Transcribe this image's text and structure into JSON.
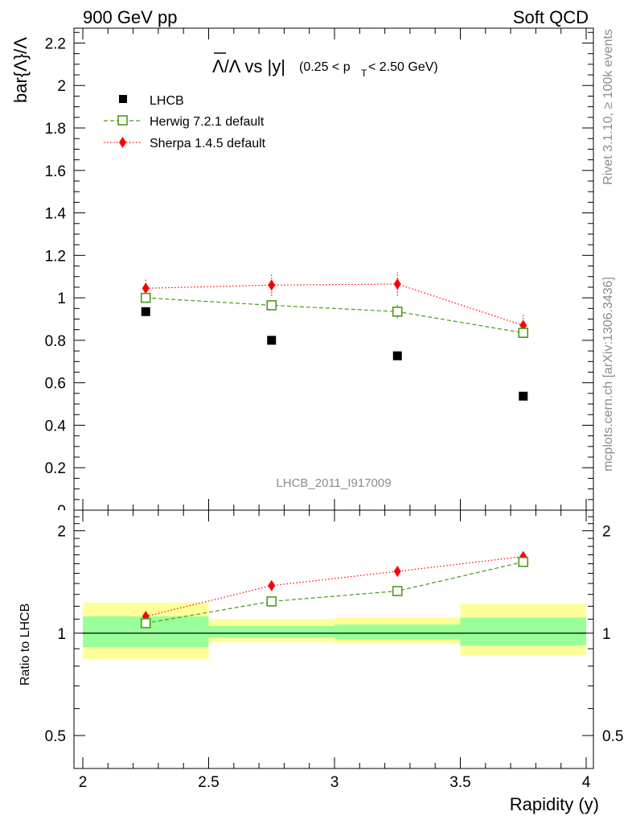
{
  "header": {
    "left": "900 GeV pp",
    "right": "Soft QCD"
  },
  "side_labels": {
    "rivet": "Rivet 3.1.10, ≥ 100k events",
    "mcplots": "mcplots.cern.ch [arXiv:1306.3436]"
  },
  "watermark": "LHCB_2011_I917009",
  "chart_data": [
    {
      "type": "scatter",
      "panel": "main",
      "title": "Λ̅/Λ vs |y|(0.25 < p_T < 2.50 GeV)",
      "title_parts": {
        "main": "Λ/Λ vs |y|",
        "range_open": "(0.25 < p",
        "sub": "T",
        "range_close": " < 2.50 GeV)"
      },
      "xlabel": "",
      "ylabel": "bar{Λ}/Λ",
      "xlim": [
        2,
        4
      ],
      "ylim": [
        0,
        2.27
      ],
      "yticks": [
        "0.2",
        "0.4",
        "0.6",
        "0.8",
        "1",
        "1.2",
        "1.4",
        "1.6",
        "1.8",
        "2",
        "2.2"
      ],
      "ytick_values": [
        0.2,
        0.4,
        0.6,
        0.8,
        1,
        1.2,
        1.4,
        1.6,
        1.8,
        2,
        2.2
      ],
      "partial_tick": "0",
      "legend_position": "top-left",
      "x": [
        2.25,
        2.75,
        3.25,
        3.75
      ],
      "series": [
        {
          "name": "LHCB",
          "values": [
            0.935,
            0.8,
            0.727,
            0.537
          ],
          "color": "#000000",
          "marker": "square-filled"
        },
        {
          "name": "Herwig 7.2.1 default",
          "values": [
            1.0,
            0.965,
            0.935,
            0.835
          ],
          "errors": [
            0.022,
            0.022,
            0.03,
            0.025
          ],
          "color": "#4a9a1a",
          "marker": "square-open",
          "line": "dashed"
        },
        {
          "name": "Sherpa 1.4.5 default",
          "values": [
            1.045,
            1.06,
            1.065,
            0.87
          ],
          "errors": [
            0.045,
            0.05,
            0.055,
            0.05
          ],
          "color": "#ff0000",
          "marker": "diamond",
          "line": "dotted"
        }
      ]
    },
    {
      "type": "scatter",
      "panel": "ratio",
      "xlabel": "Rapidity (y)",
      "ylabel": "Ratio to LHCB",
      "xlim": [
        2,
        4
      ],
      "ylim": [
        0.4,
        2.3
      ],
      "yscale": "log",
      "xticks": [
        "2",
        "2.5",
        "3",
        "3.5",
        "4"
      ],
      "xtick_values": [
        2,
        2.5,
        3,
        3.5,
        4
      ],
      "yticks": [
        "0.5",
        "1",
        "2"
      ],
      "ytick_values": [
        0.5,
        1,
        2
      ],
      "bins": [
        [
          2,
          2.5
        ],
        [
          2.5,
          3
        ],
        [
          3,
          3.5
        ],
        [
          3.5,
          4
        ]
      ],
      "band_green": [
        [
          0.91,
          1.12
        ],
        [
          0.97,
          1.05
        ],
        [
          0.96,
          1.06
        ],
        [
          0.92,
          1.11
        ]
      ],
      "band_yellow": [
        [
          0.84,
          1.23
        ],
        [
          0.94,
          1.1
        ],
        [
          0.93,
          1.11
        ],
        [
          0.86,
          1.22
        ]
      ],
      "x": [
        2.25,
        2.75,
        3.25,
        3.75
      ],
      "series": [
        {
          "name": "Herwig 7.2.1 default",
          "values": [
            1.07,
            1.24,
            1.33,
            1.62
          ],
          "errors": [
            0.025,
            0.03,
            0.04,
            0.045
          ],
          "color": "#4a9a1a",
          "marker": "square-open",
          "line": "dashed"
        },
        {
          "name": "Sherpa 1.4.5 default",
          "values": [
            1.12,
            1.38,
            1.52,
            1.68
          ],
          "errors": [
            0.04,
            0.045,
            0.055,
            0.06
          ],
          "color": "#ff0000",
          "marker": "diamond",
          "line": "dotted"
        }
      ]
    }
  ]
}
